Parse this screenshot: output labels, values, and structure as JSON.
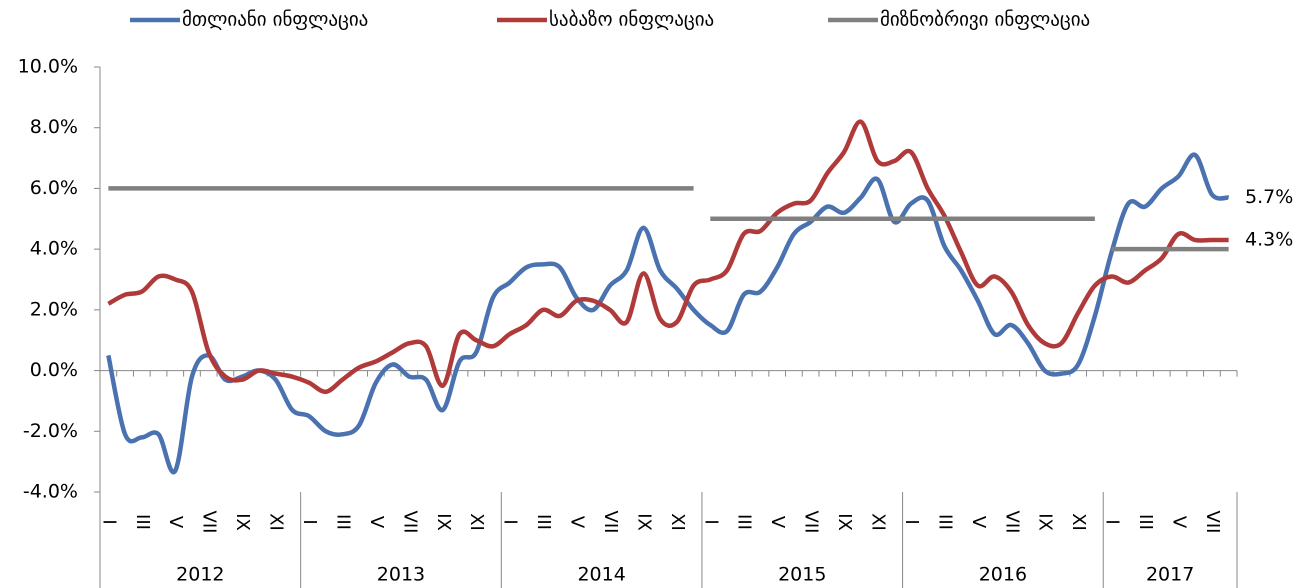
{
  "chart_data": {
    "type": "line",
    "categories": [
      "I",
      null,
      "III",
      null,
      "V",
      null,
      "VII",
      null,
      "IX",
      null,
      "XI",
      null,
      "I",
      null,
      "III",
      null,
      "V",
      null,
      "VII",
      null,
      "IX",
      null,
      "XI",
      null,
      "I",
      null,
      "III",
      null,
      "V",
      null,
      "VII",
      null,
      "IX",
      null,
      "XI",
      null,
      "I",
      null,
      "III",
      null,
      "V",
      null,
      "VII",
      null,
      "IX",
      null,
      "XI",
      null,
      "I",
      null,
      "III",
      null,
      "V",
      null,
      "VII",
      null,
      "IX",
      null,
      "XI",
      null,
      "I",
      null,
      "III",
      null,
      "V",
      null,
      "VII",
      null
    ],
    "category_groups": [
      {
        "label": "2012",
        "count": 12
      },
      {
        "label": "2013",
        "count": 12
      },
      {
        "label": "2014",
        "count": 12
      },
      {
        "label": "2015",
        "count": 12
      },
      {
        "label": "2016",
        "count": 12
      },
      {
        "label": "2017",
        "count": 8
      }
    ],
    "series": [
      {
        "name": "მთლიანი ინფლაცია",
        "color": "#4a72b0",
        "smooth": true,
        "end_label": "5.7%",
        "values": [
          0.5,
          -2.1,
          -2.2,
          -2.1,
          -3.3,
          -0.2,
          0.5,
          -0.3,
          -0.2,
          0.0,
          -0.3,
          -1.3,
          -1.5,
          -2.0,
          -2.1,
          -1.8,
          -0.4,
          0.2,
          -0.2,
          -0.3,
          -1.3,
          0.3,
          0.6,
          2.4,
          2.9,
          3.4,
          3.5,
          3.4,
          2.4,
          2.0,
          2.8,
          3.3,
          4.7,
          3.3,
          2.7,
          2.0,
          1.5,
          1.3,
          2.5,
          2.6,
          3.4,
          4.5,
          4.9,
          5.4,
          5.2,
          5.7,
          6.3,
          4.9,
          5.5,
          5.6,
          4.1,
          3.3,
          2.3,
          1.2,
          1.5,
          0.9,
          0.0,
          -0.1,
          0.2,
          1.8,
          3.9,
          5.5,
          5.4,
          6.0,
          6.4,
          7.1,
          5.8,
          5.7
        ]
      },
      {
        "name": "საბაზო ინფლაცია",
        "color": "#b03a3a",
        "smooth": true,
        "end_label": "4.3%",
        "values": [
          2.2,
          2.5,
          2.6,
          3.1,
          3.0,
          2.6,
          0.6,
          -0.2,
          -0.3,
          0.0,
          -0.1,
          -0.2,
          -0.4,
          -0.7,
          -0.3,
          0.1,
          0.3,
          0.6,
          0.9,
          0.8,
          -0.5,
          1.2,
          1.0,
          0.8,
          1.2,
          1.5,
          2.0,
          1.8,
          2.3,
          2.3,
          2.0,
          1.6,
          3.2,
          1.7,
          1.6,
          2.8,
          3.0,
          3.3,
          4.5,
          4.6,
          5.2,
          5.5,
          5.6,
          6.5,
          7.2,
          8.2,
          6.9,
          6.9,
          7.2,
          6.0,
          5.1,
          3.9,
          2.8,
          3.1,
          2.6,
          1.5,
          0.9,
          0.9,
          1.9,
          2.8,
          3.1,
          2.9,
          3.3,
          3.7,
          4.5,
          4.3,
          4.3,
          4.3
        ]
      },
      {
        "name": "მიზნობრივი ინფლაცია",
        "color": "#808080",
        "smooth": false,
        "values": [
          6,
          6,
          6,
          6,
          6,
          6,
          6,
          6,
          6,
          6,
          6,
          6,
          6,
          6,
          6,
          6,
          6,
          6,
          6,
          6,
          6,
          6,
          6,
          6,
          6,
          6,
          6,
          6,
          6,
          6,
          6,
          6,
          6,
          6,
          6,
          6,
          5,
          5,
          5,
          5,
          5,
          5,
          5,
          5,
          5,
          5,
          5,
          5,
          5,
          5,
          5,
          5,
          5,
          5,
          5,
          5,
          5,
          5,
          5,
          5,
          4,
          4,
          4,
          4,
          4,
          4,
          4,
          4
        ]
      }
    ],
    "ylim": [
      -4,
      10
    ],
    "yticks": [
      {
        "value": -4,
        "label": "-4.0%"
      },
      {
        "value": -2,
        "label": "-2.0%"
      },
      {
        "value": 0,
        "label": "0.0%"
      },
      {
        "value": 2,
        "label": "2.0%"
      },
      {
        "value": 4,
        "label": "4.0%"
      },
      {
        "value": 6,
        "label": "6.0%"
      },
      {
        "value": 8,
        "label": "8.0%"
      },
      {
        "value": 10,
        "label": "10.0%"
      }
    ],
    "legend": "top"
  }
}
